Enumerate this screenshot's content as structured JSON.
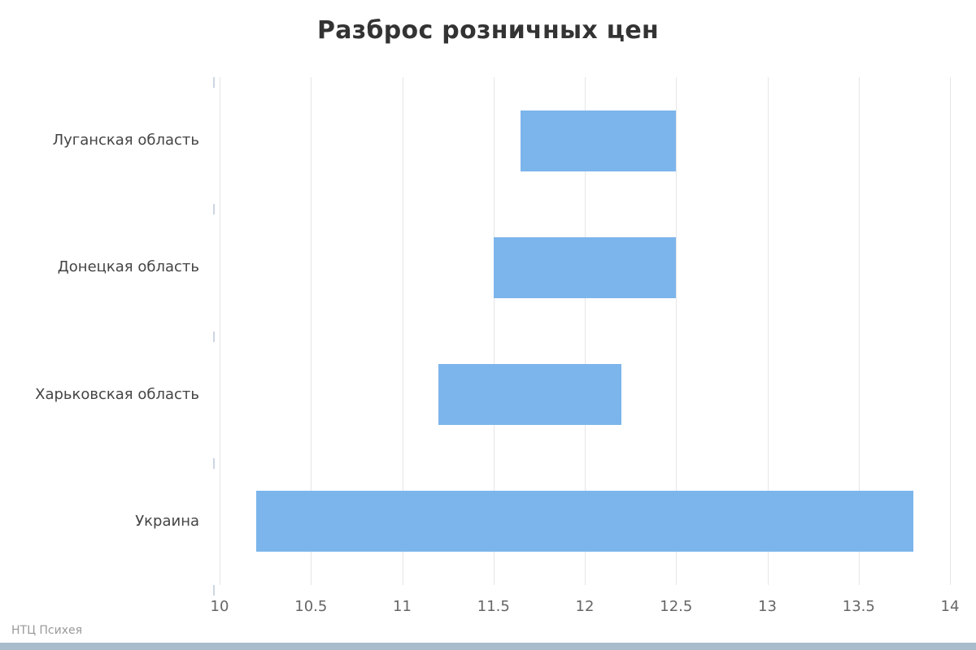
{
  "chart_data": {
    "type": "bar",
    "subtype": "range",
    "orientation": "horizontal",
    "title": "Разброс розничных цен",
    "categories": [
      "Луганская область",
      "Донецкая область",
      "Харьковская область",
      "Украина"
    ],
    "series": [
      {
        "name": "Разброс розничных цен",
        "ranges": [
          {
            "category": "Луганская область",
            "low": 11.65,
            "high": 12.5
          },
          {
            "category": "Донецкая область",
            "low": 11.5,
            "high": 12.5
          },
          {
            "category": "Харьковская область",
            "low": 11.2,
            "high": 12.2
          },
          {
            "category": "Украина",
            "low": 10.2,
            "high": 13.8
          }
        ]
      }
    ],
    "xlabel": "",
    "ylabel": "",
    "xlim": [
      10,
      14
    ],
    "xticks": [
      "10",
      "10.5",
      "11",
      "11.5",
      "12",
      "12.5",
      "13",
      "13.5",
      "14"
    ],
    "grid": true,
    "legend": "none",
    "bar_color": "#7cb5ec",
    "grid_color": "#e6e6e6",
    "credit": "НТЦ Психея"
  },
  "footer": {
    "strip_color": "#a9bccb"
  }
}
